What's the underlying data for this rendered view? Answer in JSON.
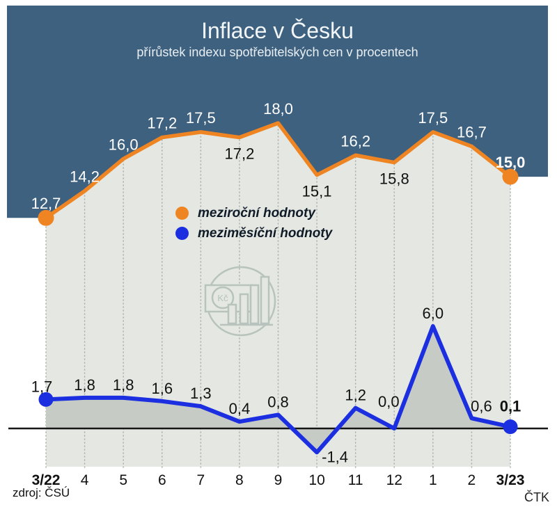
{
  "header": {
    "title": "Inflace v Česku",
    "subtitle": "přírůstek indexu spotřebitelských cen v procentech"
  },
  "legend": {
    "items": [
      {
        "label": "meziroční hodnoty",
        "color": "#ef8522"
      },
      {
        "label": "meziměsíční hodnoty",
        "color": "#1b2fe1"
      }
    ]
  },
  "watermark": {
    "currency_label": "Kč"
  },
  "footer": {
    "source": "zdroj: ČSÚ",
    "agency": "ČTK"
  },
  "colors": {
    "header_bg": "#3e6180",
    "plot_bg": "#e4e7e2",
    "area_fill": "#c6ccc5",
    "gridline": "#a9b0a9",
    "zero_line": "#161616",
    "label_dark": "#111111",
    "label_light": "#ffffff",
    "orange": "#ef8522",
    "blue": "#1b2fe1",
    "watermark": "#b7c3bc"
  },
  "chart_data": {
    "type": "line",
    "title": "Inflace v Česku",
    "subtitle": "přírůstek indexu spotřebitelských cen v procentech",
    "categories": [
      "3/22",
      "4",
      "5",
      "6",
      "7",
      "8",
      "9",
      "10",
      "11",
      "12",
      "1",
      "2",
      "3/23"
    ],
    "series": [
      {
        "name": "meziroční hodnoty",
        "color": "#ef8522",
        "values": [
          12.7,
          14.2,
          16.0,
          17.2,
          17.5,
          17.2,
          18.0,
          15.1,
          16.2,
          15.8,
          17.5,
          16.7,
          15.0
        ],
        "labels": [
          "12,7",
          "14,2",
          "16,0",
          "17,2",
          "17,5",
          "17,2",
          "18,0",
          "15,1",
          "16,2",
          "15,8",
          "17,5",
          "16,7",
          "15,0"
        ],
        "label_side": [
          "above",
          "above",
          "above",
          "above",
          "above",
          "below",
          "above",
          "below",
          "above",
          "below",
          "above",
          "above",
          "above"
        ]
      },
      {
        "name": "meziměsíční hodnoty",
        "color": "#1b2fe1",
        "values": [
          1.7,
          1.8,
          1.8,
          1.6,
          1.3,
          0.4,
          0.8,
          -1.4,
          1.2,
          0.0,
          6.0,
          0.6,
          0.1
        ],
        "labels": [
          "1,7",
          "1,8",
          "1,8",
          "1,6",
          "1,3",
          "0,4",
          "0,8",
          "-1,4",
          "1,2",
          "0,0",
          "6,0",
          "0,6",
          "0,1"
        ]
      }
    ],
    "grid": "vertical-dotted",
    "legend_position": "middle-left",
    "emphasized_points": "first-and-last",
    "zero_baseline_series": 2,
    "xlabel": "",
    "ylabel": ""
  }
}
